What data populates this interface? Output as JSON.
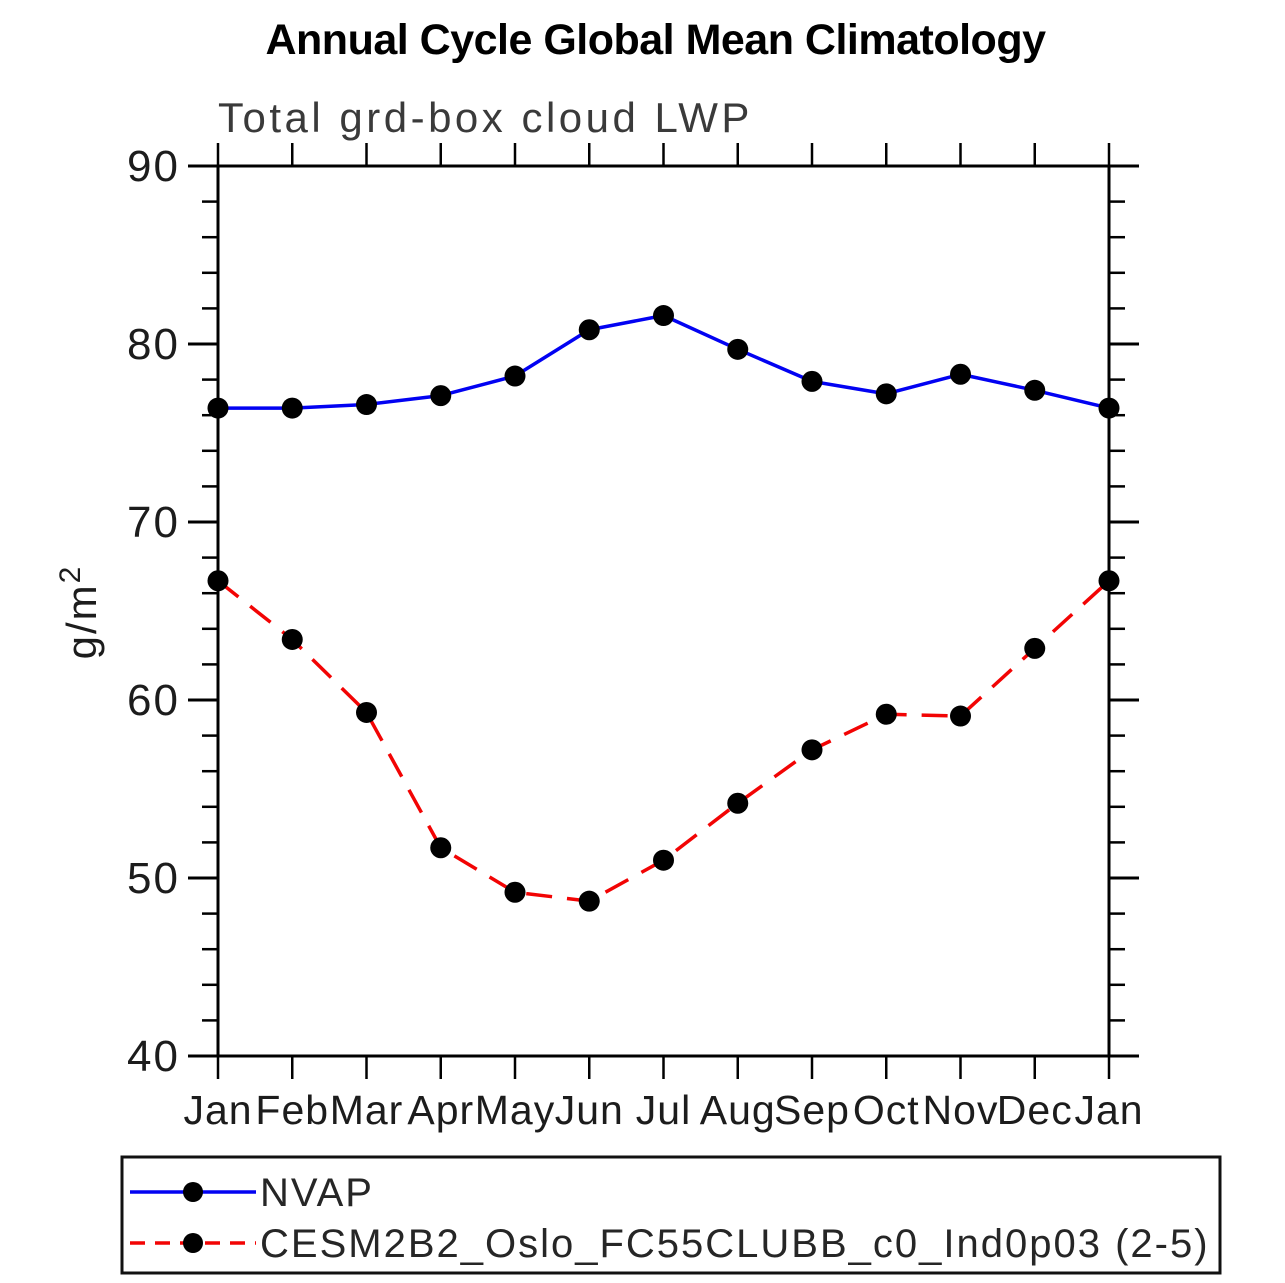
{
  "chart_data": {
    "type": "line",
    "title": "Annual Cycle Global Mean Climatology",
    "subtitle": "Total grd-box cloud LWP",
    "ylabel": "g/m²",
    "ylabel_base": "g/m",
    "ylabel_sup": "2",
    "ylim": [
      40,
      90
    ],
    "ytick_major": [
      90,
      80,
      70,
      60,
      50,
      40
    ],
    "ytick_minor_step": 2,
    "grid": false,
    "legend_position": "bottom",
    "categories": [
      "Jan",
      "Feb",
      "Mar",
      "Apr",
      "May",
      "Jun",
      "Jul",
      "Aug",
      "Sep",
      "Oct",
      "Nov",
      "Dec",
      "Jan"
    ],
    "series": [
      {
        "name": "NVAP",
        "line_color": "#0202f2",
        "line_style": "solid",
        "marker": "filled-circle",
        "marker_color": "#000000",
        "values": [
          76.4,
          76.4,
          76.6,
          77.1,
          78.2,
          80.8,
          81.6,
          79.7,
          77.9,
          77.2,
          78.3,
          77.4,
          76.4
        ]
      },
      {
        "name": "CESM2B2_Oslo_FC55CLUBB_c0_Ind0p03 (2-5)",
        "line_color": "#f20404",
        "line_style": "dashed",
        "marker": "filled-circle",
        "marker_color": "#000000",
        "values": [
          66.7,
          63.4,
          59.3,
          51.7,
          49.2,
          48.7,
          51.0,
          54.2,
          57.2,
          59.2,
          59.1,
          62.9,
          66.7
        ]
      }
    ]
  }
}
